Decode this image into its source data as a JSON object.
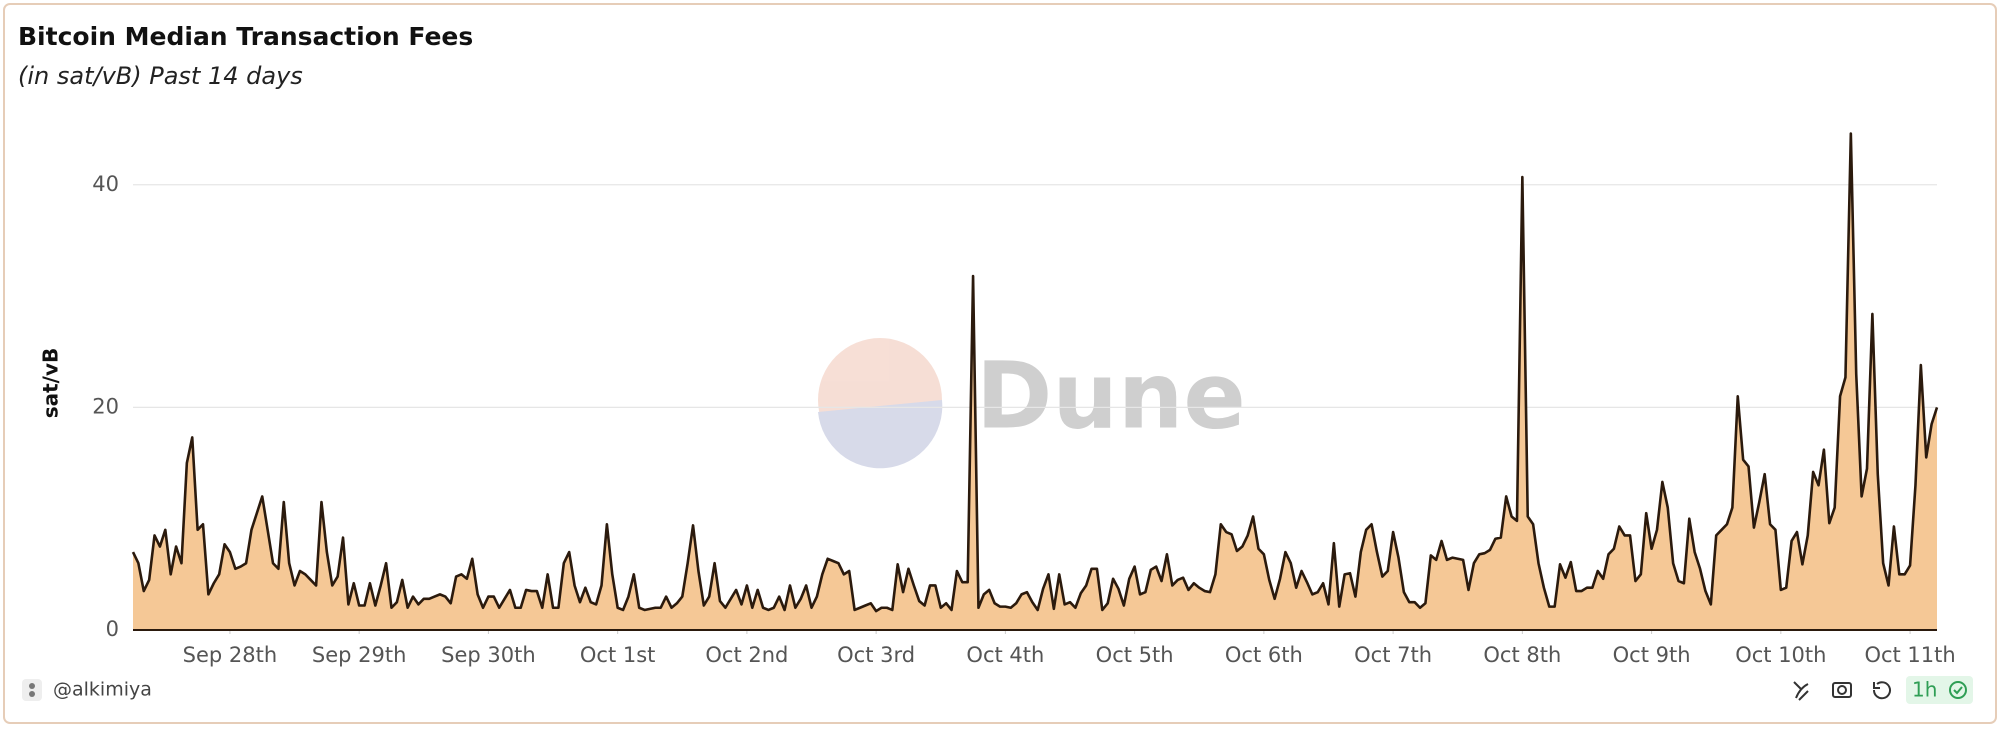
{
  "chart_data": {
    "type": "area",
    "title": "Bitcoin Median Transaction Fees",
    "subtitle": "(in sat/vB) Past 14 days",
    "y_label": "sat/vB",
    "watermark": "Dune",
    "author": "@alkimiya",
    "refresh": "1h",
    "color": "#2b1a0d",
    "fill_color": "#f5c896",
    "grid": true,
    "xlim": [
      0,
      335
    ],
    "xticks": [
      {
        "value": 18,
        "label": "Sep 28th"
      },
      {
        "value": 42,
        "label": "Sep 29th"
      },
      {
        "value": 66,
        "label": "Sep 30th"
      },
      {
        "value": 90,
        "label": "Oct 1st"
      },
      {
        "value": 114,
        "label": "Oct 2nd"
      },
      {
        "value": 138,
        "label": "Oct 3rd"
      },
      {
        "value": 162,
        "label": "Oct 4th"
      },
      {
        "value": 186,
        "label": "Oct 5th"
      },
      {
        "value": 210,
        "label": "Oct 6th"
      },
      {
        "value": 234,
        "label": "Oct 7th"
      },
      {
        "value": 258,
        "label": "Oct 8th"
      },
      {
        "value": 282,
        "label": "Oct 9th"
      },
      {
        "value": 306,
        "label": "Oct 10th"
      },
      {
        "value": 330,
        "label": "Oct 11th"
      }
    ],
    "ylim": [
      0,
      46
    ],
    "yticks": [
      0,
      20,
      40
    ],
    "values": [
      7,
      6,
      3.5,
      4.5,
      8.5,
      7.5,
      9,
      5,
      7.5,
      6,
      15,
      17.3,
      9,
      9.5,
      3.2,
      4.2,
      5,
      7.7,
      7,
      5.5,
      5.7,
      6,
      9,
      10.5,
      12,
      9,
      6,
      5.5,
      11.5,
      6,
      4,
      5.3,
      5,
      4.5,
      4,
      11.5,
      7,
      4,
      4.8,
      8.3,
      2.3,
      4.2,
      2.2,
      2.2,
      4.2,
      2.2,
      4,
      6,
      2,
      2.5,
      4.5,
      2,
      3,
      2.3,
      2.8,
      2.8,
      3,
      3.2,
      3,
      2.4,
      4.8,
      5,
      4.6,
      6.4,
      3.2,
      2,
      3,
      3,
      2,
      2.8,
      3.6,
      2,
      2,
      3.6,
      3.5,
      3.5,
      2,
      5,
      2,
      2,
      6,
      7,
      4,
      2.5,
      3.8,
      2.5,
      2.3,
      4,
      9.5,
      5,
      2,
      1.8,
      3,
      5,
      2,
      1.8,
      1.9,
      2,
      2,
      3,
      2,
      2.4,
      3,
      6,
      9.4,
      5.3,
      2.2,
      3,
      6,
      2.6,
      2,
      2.8,
      3.6,
      2.3,
      4,
      2,
      3.6,
      2,
      1.8,
      2,
      3,
      1.8,
      4,
      2,
      2.8,
      4,
      2,
      3,
      5,
      6.4,
      6.2,
      6,
      5,
      5.3,
      1.8,
      2,
      2.2,
      2.4,
      1.7,
      2,
      2,
      1.8,
      5.9,
      3.4,
      5.5,
      4,
      2.6,
      2.2,
      4,
      4,
      2,
      2.4,
      1.8,
      5.3,
      4.3,
      4.3,
      31.8,
      2,
      3.2,
      3.6,
      2.4,
      2.1,
      2.1,
      2,
      2.4,
      3.2,
      3.4,
      2.5,
      1.8,
      3.7,
      5,
      1.9,
      5,
      2.3,
      2.5,
      2,
      3.3,
      4,
      5.5,
      5.5,
      1.8,
      2.4,
      4.6,
      3.7,
      2.2,
      4.6,
      5.7,
      3.2,
      3.4,
      5.4,
      5.7,
      4.4,
      6.8,
      4,
      4.5,
      4.7,
      3.6,
      4.2,
      3.8,
      3.5,
      3.4,
      5,
      9.5,
      8.8,
      8.6,
      7.1,
      7.5,
      8.5,
      10.2,
      7.3,
      6.8,
      4.5,
      2.8,
      4.6,
      7,
      6,
      3.8,
      5.3,
      4.3,
      3.2,
      3.4,
      4.2,
      2.3,
      7.8,
      2.1,
      5,
      5.1,
      3,
      7,
      9,
      9.5,
      7,
      4.8,
      5.3,
      8.8,
      6.5,
      3.4,
      2.5,
      2.5,
      2,
      2.4,
      6.7,
      6.3,
      8,
      6.3,
      6.5,
      6.4,
      6.3,
      3.6,
      6,
      6.8,
      6.9,
      7.2,
      8.2,
      8.3,
      12,
      10.2,
      9.8,
      40.7,
      10.2,
      9.5,
      6,
      3.8,
      2.1,
      2.1,
      5.9,
      4.7,
      6.1,
      3.5,
      3.5,
      3.8,
      3.8,
      5.3,
      4.6,
      6.8,
      7.3,
      9.3,
      8.5,
      8.5,
      4.4,
      5,
      10.5,
      7.3,
      9,
      13.3,
      11,
      6,
      4.4,
      4.2,
      10,
      7,
      5.5,
      3.5,
      2.3,
      8.5,
      9,
      9.5,
      11,
      21,
      15.3,
      14.7,
      9.2,
      11.5,
      14,
      9.5,
      9,
      3.6,
      3.8,
      8,
      8.8,
      5.9,
      8.5,
      14.2,
      13,
      16.2,
      9.6,
      11,
      21,
      22.7,
      44.6,
      23,
      12,
      14.5,
      28.4,
      14,
      6,
      4,
      9.3,
      5,
      5,
      5.8,
      13,
      23.8,
      15.5,
      18.5,
      20
    ]
  }
}
